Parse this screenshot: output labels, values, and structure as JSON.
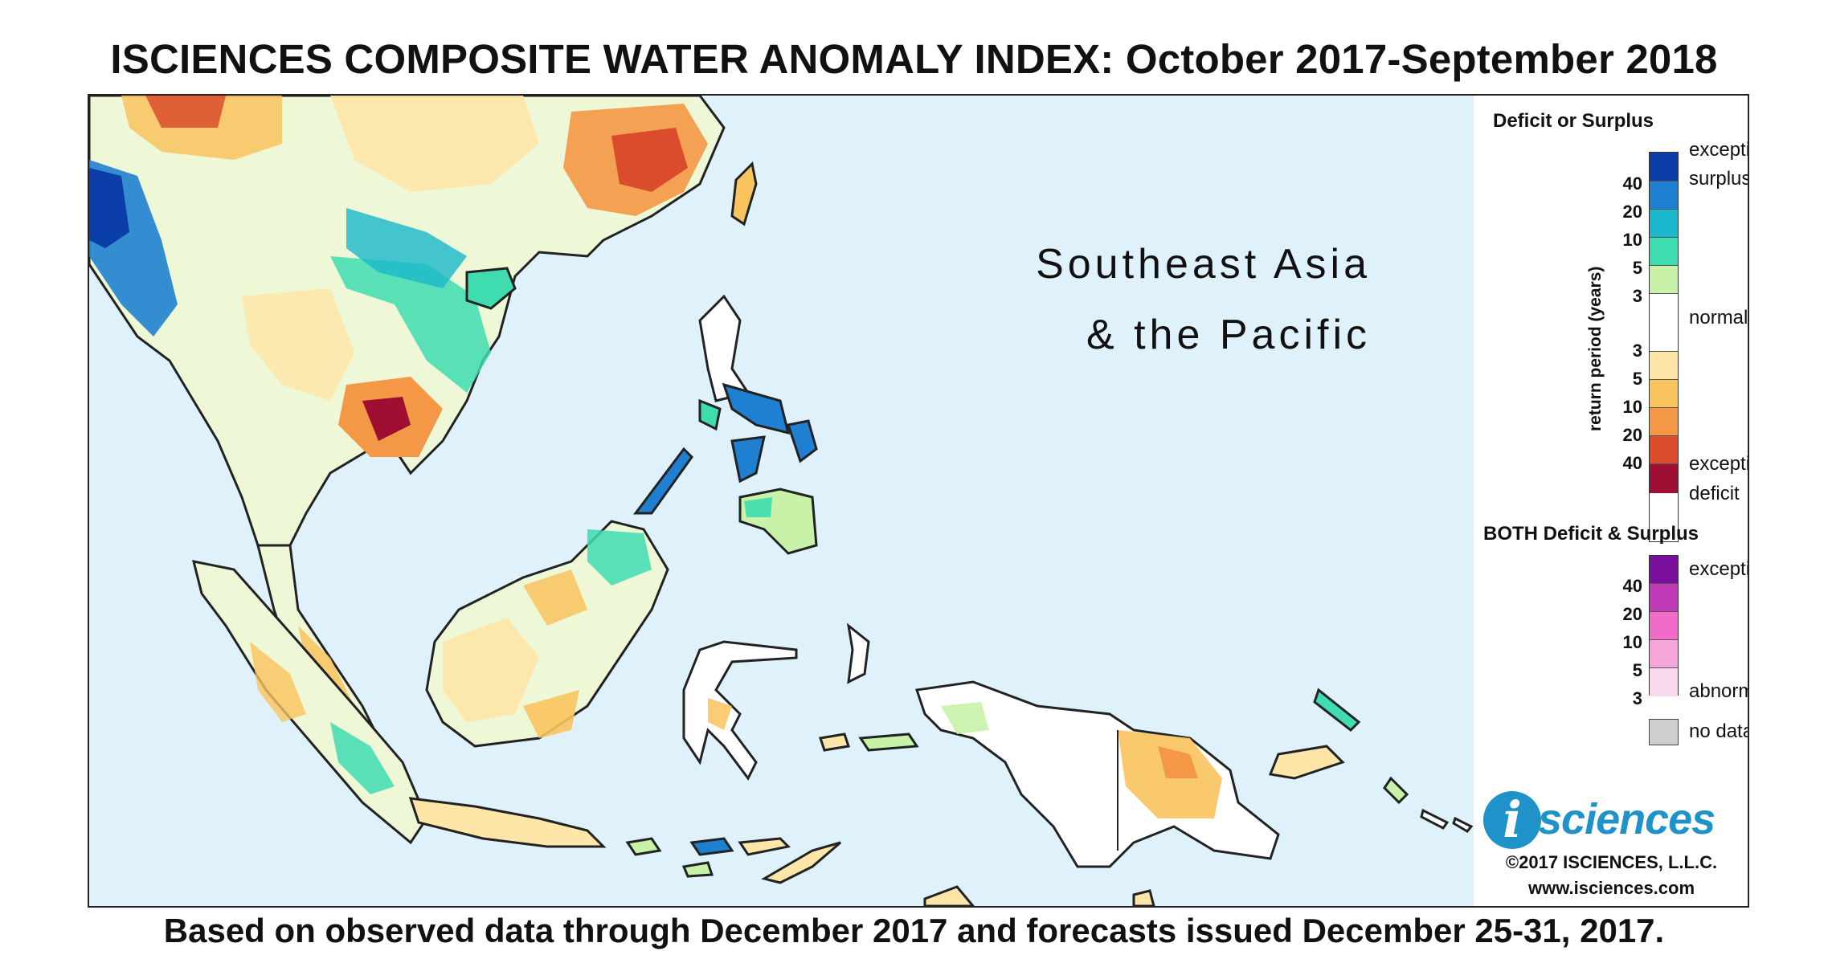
{
  "title": "ISCIENCES COMPOSITE WATER ANOMALY INDEX: October 2017-September 2018",
  "footer": "Based on observed data through December 2017 and forecasts issued December 25-31, 2017.",
  "map": {
    "region_line1": "Southeast Asia",
    "region_line2": "& the Pacific",
    "ocean_color": "#dff2fb",
    "land_outline_color": "#222222"
  },
  "legend": {
    "deficit_surplus": {
      "heading": "Deficit or Surplus",
      "axis_label": "return period (years)",
      "labels": {
        "top1": "exceptional",
        "top2": "surplus",
        "middle": "normal",
        "bottom1": "exceptional",
        "bottom2": "deficit"
      },
      "ticks_surplus": [
        "40",
        "20",
        "10",
        "5",
        "3"
      ],
      "ticks_deficit": [
        "3",
        "5",
        "10",
        "20",
        "40"
      ],
      "colors": [
        "#0b3ea8",
        "#1f7fd0",
        "#19b8cc",
        "#3fdcb0",
        "#c8f2a8",
        "#ffffff",
        "#fde6a8",
        "#f9c35e",
        "#f49746",
        "#db4c2c",
        "#9e0e32"
      ]
    },
    "both": {
      "heading": "BOTH Deficit & Surplus",
      "labels": {
        "top": "exceptional",
        "bottom": "abnormal"
      },
      "ticks": [
        "40",
        "20",
        "10",
        "5",
        "3"
      ],
      "colors": [
        "#7a0f9e",
        "#c23ab8",
        "#f06cc8",
        "#f6a6da",
        "#fbd9ec"
      ]
    },
    "no_data": {
      "label": "no data",
      "color": "#cfcfcf"
    }
  },
  "branding": {
    "logo_letter": "i",
    "logo_word": "sciences",
    "copyright": "©2017 ISCIENCES, L.L.C.",
    "website": "www.isciences.com"
  }
}
